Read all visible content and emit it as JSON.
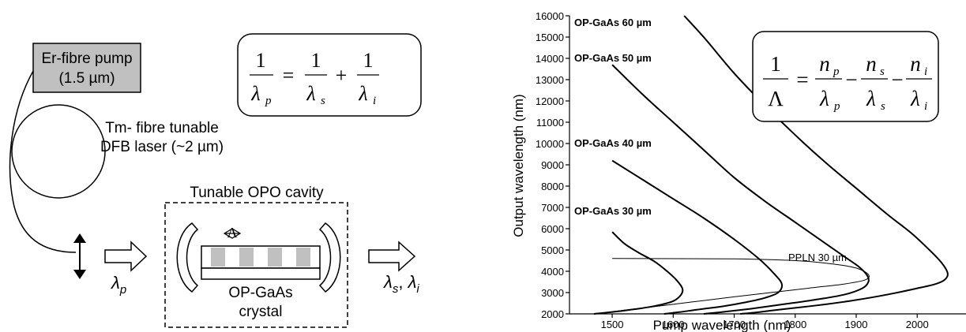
{
  "diagram": {
    "pump": {
      "line1": "Er-fibre pump",
      "line2": "(1.5 µm)",
      "fill": "#c0c0c0"
    },
    "tm_laser": {
      "line1": "Tm- fibre tunable",
      "line2": "DFB laser (~2 µm)"
    },
    "cavity_title": "Tunable OPO cavity",
    "lambda_pump_symbol": "λ",
    "lambda_pump_sub": "p",
    "period_symbol": "Λ",
    "crystal": {
      "line1": "OP-GaAs",
      "line2": "crystal",
      "stripe_fill": "#c0c0c0"
    },
    "output": {
      "s_symbol": "λ",
      "s_sub": "s",
      "sep": ", ",
      "i_symbol": "λ",
      "i_sub": "i"
    },
    "energy_eq": {
      "one": "1",
      "lp": "λ",
      "lp_sub": "p",
      "ls": "λ",
      "ls_sub": "s",
      "li": "λ",
      "li_sub": "i",
      "eq": "=",
      "plus": "+"
    }
  },
  "chart_data": {
    "type": "line",
    "xlabel": "Pump wavelength (nm)",
    "ylabel": "Output wavelength (nm)",
    "xlim": [
      1430,
      2080
    ],
    "ylim": [
      2000,
      16000
    ],
    "xticks": [
      "1500",
      "1600",
      "1700",
      "1800",
      "1900",
      "2000"
    ],
    "yticks": [
      "2000",
      "3000",
      "4000",
      "5000",
      "6000",
      "7000",
      "8000",
      "9000",
      "10000",
      "11000",
      "12000",
      "13000",
      "14000",
      "15000",
      "16000"
    ],
    "equation": {
      "one": "1",
      "Lambda": "Λ",
      "eq": "=",
      "minus": "−",
      "np": "n",
      "np_sub": "p",
      "lp": "λ",
      "lp_sub": "p",
      "ns": "n",
      "ns_sub": "s",
      "ls": "λ",
      "ls_sub": "s",
      "ni": "n",
      "ni_sub": "i",
      "li": "λ",
      "li_sub": "i"
    },
    "series": [
      {
        "name": "OP-GaAs 30 µm",
        "weight": "bold",
        "x": [
          1500,
          1520,
          1545,
          1570,
          1590,
          1605,
          1615,
          1613,
          1600,
          1575,
          1545,
          1510,
          1470
        ],
        "y": [
          5850,
          5300,
          4850,
          4450,
          4000,
          3600,
          3200,
          2900,
          2600,
          2400,
          2250,
          2120,
          2000
        ]
      },
      {
        "name": "OP-GaAs 40 µm",
        "weight": "bold",
        "x": [
          1500,
          1550,
          1600,
          1650,
          1700,
          1740,
          1765,
          1778,
          1772,
          1750,
          1720,
          1680,
          1640,
          1610,
          1585
        ],
        "y": [
          9200,
          8300,
          7400,
          6500,
          5500,
          4600,
          3900,
          3400,
          3000,
          2750,
          2550,
          2350,
          2200,
          2080,
          2000
        ]
      },
      {
        "name": "OP-GaAs 50 µm",
        "weight": "bold",
        "x": [
          1500,
          1550,
          1600,
          1650,
          1700,
          1750,
          1800,
          1850,
          1880,
          1905,
          1918,
          1920,
          1910,
          1880,
          1830,
          1780,
          1730,
          1685,
          1650
        ],
        "y": [
          13700,
          12300,
          11000,
          9700,
          8400,
          7300,
          6300,
          5300,
          4700,
          4200,
          3800,
          3500,
          3200,
          2900,
          2650,
          2450,
          2250,
          2100,
          2000
        ]
      },
      {
        "name": "OP-GaAs 60 µm",
        "weight": "bold",
        "x": [
          1618,
          1650,
          1700,
          1750,
          1800,
          1850,
          1900,
          1950,
          1990,
          2020,
          2040,
          2050,
          2045,
          2030,
          2000,
          1950,
          1900,
          1850,
          1800,
          1760,
          1730,
          1710
        ],
        "y": [
          16000,
          15000,
          13300,
          11800,
          10400,
          9100,
          7900,
          6700,
          5800,
          5000,
          4400,
          3900,
          3600,
          3400,
          3200,
          2900,
          2650,
          2450,
          2280,
          2150,
          2050,
          2000
        ]
      },
      {
        "name": "PPLN 30 µm",
        "weight": "normal",
        "x": [
          1500,
          1700,
          1800,
          1860,
          1900,
          1920,
          1915,
          1880,
          1820,
          1700,
          1600,
          1500
        ],
        "y": [
          4600,
          4580,
          4500,
          4350,
          4150,
          3850,
          3600,
          3400,
          3200,
          2800,
          2450,
          2100
        ]
      }
    ]
  }
}
